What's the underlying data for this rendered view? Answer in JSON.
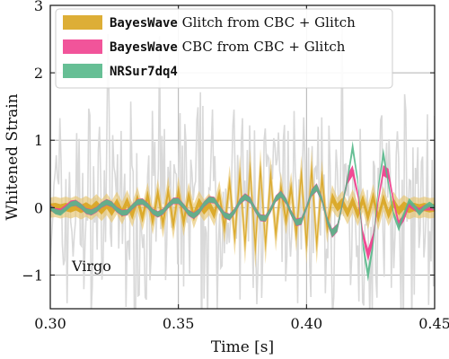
{
  "chart_data": {
    "type": "line",
    "xlabel": "Time [s]",
    "ylabel": "Whitened Strain",
    "xlim": [
      0.3,
      0.45
    ],
    "ylim": [
      -1.5,
      3
    ],
    "xticks": [
      0.3,
      0.35,
      0.4,
      0.45
    ],
    "xtick_labels": [
      "0.30",
      "0.35",
      "0.40",
      "0.45"
    ],
    "yticks": [
      -1,
      0,
      1,
      2,
      3
    ],
    "ytick_labels": [
      "−1",
      "0",
      "1",
      "2",
      "3"
    ],
    "grid": true,
    "legend_position": "top-left",
    "annotation": "Virgo",
    "colors": {
      "data": "#d9d9d9",
      "glitch_outer": "#e6c56e",
      "glitch_inner": "#d9a520",
      "cbc": "#f0418f",
      "nrsur": "#55b88a"
    },
    "legend": [
      {
        "mono": "BayesWave",
        "text": " Glitch from CBC + Glitch",
        "color": "#d9a520"
      },
      {
        "mono": "BayesWave",
        "text": " CBC from CBC + Glitch",
        "color": "#f0418f"
      },
      {
        "mono": "NRSur7dq4",
        "text": "",
        "color": "#55b88a"
      }
    ],
    "series": [
      {
        "name": "BayesWave Glitch from CBC + Glitch",
        "t0": 0.3,
        "dt": 0.002,
        "values": [
          0.0,
          0.01,
          -0.01,
          0.01,
          -0.01,
          0.02,
          -0.02,
          0.02,
          -0.03,
          0.04,
          -0.04,
          0.05,
          -0.06,
          0.07,
          -0.08,
          0.09,
          -0.11,
          0.13,
          -0.15,
          0.18,
          -0.2,
          0.22,
          -0.24,
          0.25,
          -0.26,
          0.25,
          -0.22,
          0.18,
          -0.13,
          0.08,
          -0.04,
          0.05,
          -0.1,
          0.2,
          -0.3,
          0.38,
          -0.45,
          0.5,
          -0.55,
          0.58,
          -0.6,
          0.58,
          -0.55,
          0.48,
          -0.4,
          0.3,
          -0.2,
          0.3,
          -0.4,
          0.5,
          -0.55,
          0.58,
          -0.55,
          0.45,
          -0.3,
          0.15,
          0.0,
          0.08,
          -0.08,
          0.1,
          -0.1,
          0.12,
          -0.14,
          0.16,
          -0.15,
          0.13,
          -0.1,
          0.07,
          -0.05,
          0.03,
          -0.02,
          0.01,
          -0.01,
          0.01,
          -0.01,
          0.0
        ],
        "inner_half_width": 0.1,
        "outer_half_width": 0.25
      },
      {
        "name": "BayesWave CBC from CBC + Glitch",
        "t0": 0.3,
        "dt": 0.002,
        "values": [
          0.0,
          -0.05,
          -0.06,
          0.0,
          0.06,
          0.07,
          0.02,
          -0.05,
          -0.07,
          -0.03,
          0.04,
          0.08,
          0.05,
          -0.03,
          -0.08,
          -0.07,
          0.01,
          0.08,
          0.09,
          0.03,
          -0.06,
          -0.1,
          -0.06,
          0.03,
          0.1,
          0.1,
          0.02,
          -0.08,
          -0.12,
          -0.06,
          0.05,
          0.12,
          0.11,
          0.0,
          -0.11,
          -0.14,
          -0.05,
          0.09,
          0.16,
          0.11,
          -0.03,
          -0.15,
          -0.16,
          -0.03,
          0.13,
          0.2,
          0.1,
          -0.08,
          -0.22,
          -0.2,
          0.0,
          0.22,
          0.3,
          0.12,
          -0.18,
          -0.38,
          -0.3,
          0.05,
          0.42,
          0.55,
          0.2,
          -0.4,
          -0.7,
          -0.45,
          0.1,
          0.55,
          0.5,
          0.1,
          -0.25,
          -0.15,
          0.05,
          0.0,
          -0.05,
          0.0,
          0.0,
          0.0
        ],
        "half_width": 0.07
      },
      {
        "name": "NRSur7dq4",
        "t0": 0.3,
        "dt": 0.002,
        "values": [
          0.0,
          -0.06,
          -0.08,
          -0.02,
          0.05,
          0.07,
          0.02,
          -0.05,
          -0.07,
          -0.03,
          0.04,
          0.08,
          0.05,
          -0.03,
          -0.08,
          -0.07,
          0.01,
          0.08,
          0.09,
          0.03,
          -0.06,
          -0.1,
          -0.06,
          0.03,
          0.1,
          0.1,
          0.02,
          -0.08,
          -0.12,
          -0.06,
          0.05,
          0.12,
          0.11,
          0.0,
          -0.11,
          -0.14,
          -0.05,
          0.09,
          0.16,
          0.11,
          -0.03,
          -0.15,
          -0.16,
          -0.03,
          0.13,
          0.2,
          0.1,
          -0.08,
          -0.22,
          -0.2,
          0.0,
          0.22,
          0.3,
          0.12,
          -0.18,
          -0.38,
          -0.3,
          0.05,
          0.42,
          0.9,
          0.4,
          -0.55,
          -1.0,
          -0.55,
          0.3,
          0.8,
          0.35,
          -0.1,
          -0.3,
          -0.1,
          0.1,
          0.02,
          -0.08,
          0.0,
          0.05,
          0.0
        ],
        "half_width": 0.06
      }
    ]
  }
}
